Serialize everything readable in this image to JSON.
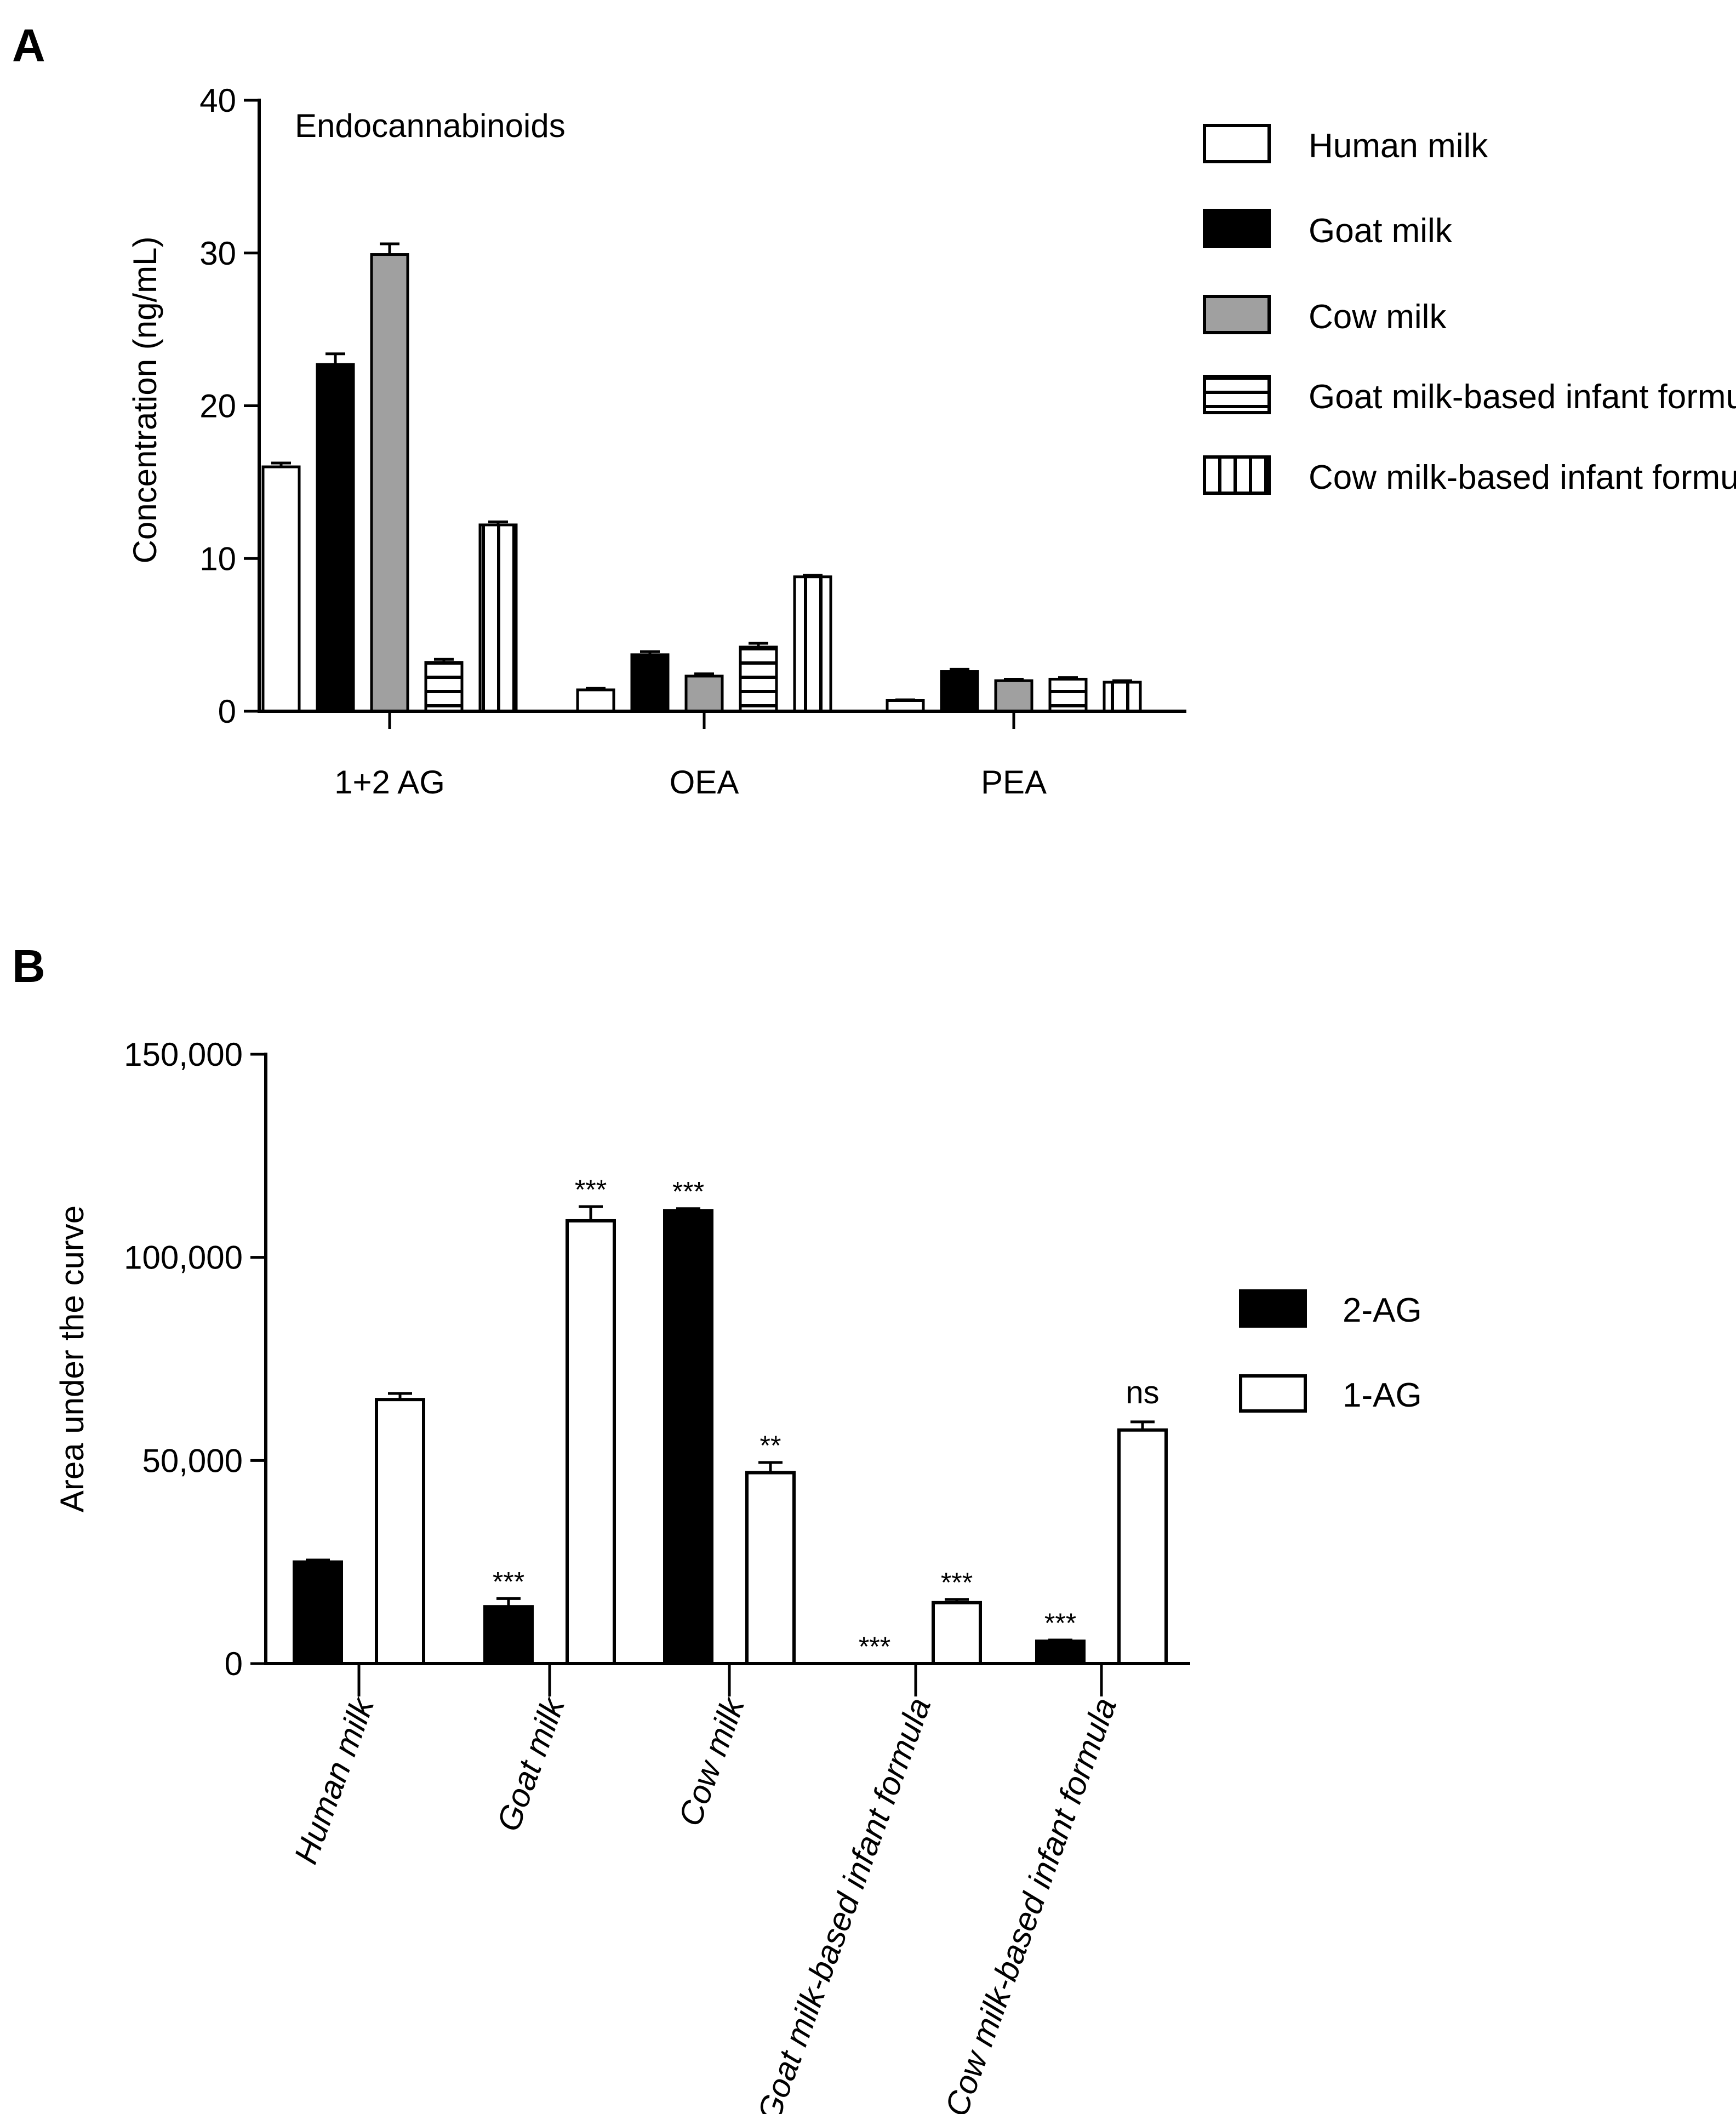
{
  "chart_data": [
    {
      "panel": "A",
      "type": "bar",
      "title": "Endocannabinoids",
      "xlabel": "",
      "ylabel": "Concentration (ng/mL)",
      "ylim": [
        0,
        40
      ],
      "yticks": [
        "0",
        "10",
        "20",
        "30",
        "40"
      ],
      "categories": [
        "1+2 AG",
        "OEA",
        "PEA"
      ],
      "legend_position": "right",
      "series": [
        {
          "name": "Human milk",
          "style": "open",
          "values": [
            16.0,
            1.4,
            0.7
          ],
          "errors": [
            0.25,
            0.1,
            0.05
          ]
        },
        {
          "name": "Goat milk",
          "style": "black",
          "values": [
            22.7,
            3.7,
            2.6
          ],
          "errors": [
            0.7,
            0.2,
            0.15
          ]
        },
        {
          "name": "Cow milk",
          "style": "gray",
          "values": [
            29.9,
            2.3,
            2.0
          ],
          "errors": [
            0.7,
            0.15,
            0.1
          ]
        },
        {
          "name": "Goat milk-based infant formula",
          "style": "hlines",
          "values": [
            3.2,
            4.2,
            2.1
          ],
          "errors": [
            0.2,
            0.25,
            0.1
          ]
        },
        {
          "name": "Cow milk-based infant formula",
          "style": "vlines",
          "values": [
            12.2,
            8.8,
            1.9
          ],
          "errors": [
            0.2,
            0.1,
            0.1
          ]
        }
      ]
    },
    {
      "panel": "B",
      "type": "bar",
      "title": "",
      "xlabel": "",
      "ylabel": "Area under the curve",
      "ylim": [
        0,
        150000
      ],
      "yticks": [
        "0",
        "50,000",
        "100,000",
        "150,000"
      ],
      "categories": [
        "Human milk",
        "Goat milk",
        "Cow milk",
        "Goat milk-based infant formula",
        "Cow milk-based infant formula"
      ],
      "legend_position": "right",
      "series": [
        {
          "name": "2-AG",
          "style": "black",
          "values": [
            25000,
            14000,
            111500,
            0,
            5500
          ],
          "errors": [
            500,
            2000,
            500,
            0,
            300
          ],
          "annotations": [
            "",
            "***",
            "***",
            "***",
            "***"
          ]
        },
        {
          "name": "1-AG",
          "style": "open",
          "values": [
            65000,
            109000,
            47000,
            15000,
            57500
          ],
          "errors": [
            1500,
            3500,
            2500,
            800,
            2000
          ],
          "annotations": [
            "",
            "***",
            "**",
            "***",
            "ns"
          ]
        }
      ]
    }
  ]
}
